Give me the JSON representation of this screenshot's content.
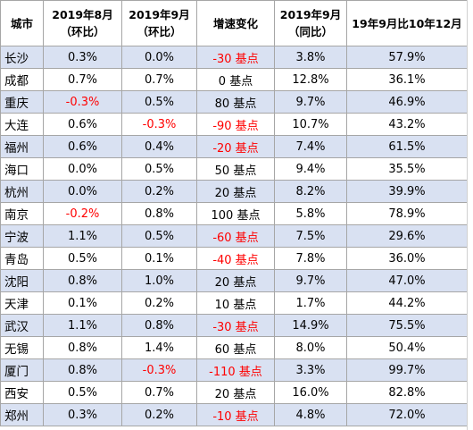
{
  "headers": [
    {
      "line1": "城市",
      "line2": ""
    },
    {
      "line1": "2019年8月",
      "line2": "（环比）"
    },
    {
      "line1": "2019年9月",
      "line2": "（环比）"
    },
    {
      "line1": "增速变化",
      "line2": ""
    },
    {
      "line1": "2019年9月",
      "line2": "（同比）"
    },
    {
      "line1": "19年9月比10年12月",
      "line2": ""
    }
  ],
  "rows": [
    {
      "city": "长沙",
      "aug_mom": "0.3%",
      "sep_mom": "0.0%",
      "change": "-30 基点",
      "sep_yoy": "3.8%",
      "vs_2010": "57.9%"
    },
    {
      "city": "成都",
      "aug_mom": "0.7%",
      "sep_mom": "0.7%",
      "change": "0 基点",
      "sep_yoy": "12.8%",
      "vs_2010": "36.1%"
    },
    {
      "city": "重庆",
      "aug_mom": "-0.3%",
      "sep_mom": "0.5%",
      "change": "80 基点",
      "sep_yoy": "9.7%",
      "vs_2010": "46.9%"
    },
    {
      "city": "大连",
      "aug_mom": "0.6%",
      "sep_mom": "-0.3%",
      "change": "-90 基点",
      "sep_yoy": "10.7%",
      "vs_2010": "43.2%"
    },
    {
      "city": "福州",
      "aug_mom": "0.6%",
      "sep_mom": "0.4%",
      "change": "-20 基点",
      "sep_yoy": "7.4%",
      "vs_2010": "61.5%"
    },
    {
      "city": "海口",
      "aug_mom": "0.0%",
      "sep_mom": "0.5%",
      "change": "50 基点",
      "sep_yoy": "9.4%",
      "vs_2010": "35.5%"
    },
    {
      "city": "杭州",
      "aug_mom": "0.0%",
      "sep_mom": "0.2%",
      "change": "20 基点",
      "sep_yoy": "8.2%",
      "vs_2010": "39.9%"
    },
    {
      "city": "南京",
      "aug_mom": "-0.2%",
      "sep_mom": "0.8%",
      "change": "100 基点",
      "sep_yoy": "5.8%",
      "vs_2010": "78.9%"
    },
    {
      "city": "宁波",
      "aug_mom": "1.1%",
      "sep_mom": "0.5%",
      "change": "-60 基点",
      "sep_yoy": "7.5%",
      "vs_2010": "29.6%"
    },
    {
      "city": "青岛",
      "aug_mom": "0.5%",
      "sep_mom": "0.1%",
      "change": "-40 基点",
      "sep_yoy": "7.8%",
      "vs_2010": "36.0%"
    },
    {
      "city": "沈阳",
      "aug_mom": "0.8%",
      "sep_mom": "1.0%",
      "change": "20 基点",
      "sep_yoy": "9.7%",
      "vs_2010": "47.0%"
    },
    {
      "city": "天津",
      "aug_mom": "0.1%",
      "sep_mom": "0.2%",
      "change": "10 基点",
      "sep_yoy": "1.7%",
      "vs_2010": "44.2%"
    },
    {
      "city": "武汉",
      "aug_mom": "1.1%",
      "sep_mom": "0.8%",
      "change": "-30 基点",
      "sep_yoy": "14.9%",
      "vs_2010": "75.5%"
    },
    {
      "city": "无锡",
      "aug_mom": "0.8%",
      "sep_mom": "1.4%",
      "change": "60 基点",
      "sep_yoy": "8.0%",
      "vs_2010": "50.4%"
    },
    {
      "city": "厦门",
      "aug_mom": "0.8%",
      "sep_mom": "-0.3%",
      "change": "-110 基点",
      "sep_yoy": "3.3%",
      "vs_2010": "99.7%"
    },
    {
      "city": "西安",
      "aug_mom": "0.5%",
      "sep_mom": "0.7%",
      "change": "20 基点",
      "sep_yoy": "16.0%",
      "vs_2010": "82.8%"
    },
    {
      "city": "郑州",
      "aug_mom": "0.3%",
      "sep_mom": "0.2%",
      "change": "-10 基点",
      "sep_yoy": "4.8%",
      "vs_2010": "72.0%"
    }
  ],
  "colors": {
    "band": "#d9e1f2",
    "negative": "#ff0000",
    "grid": "#a6a6a6"
  }
}
